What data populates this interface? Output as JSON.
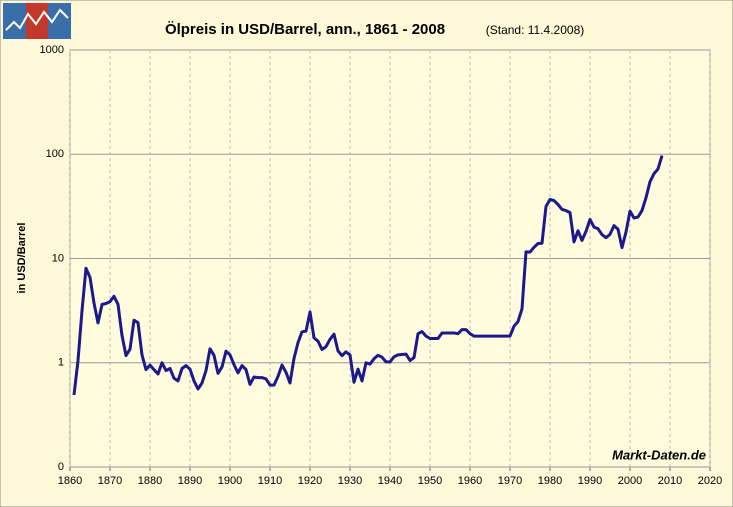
{
  "chart_data": {
    "type": "line",
    "title": "Ölpreis in USD/Barrel, ann., 1861 - 2008",
    "subtitle": "(Stand: 11.4.2008)",
    "y_label": "in USD/Barrel",
    "annotation": "Markt-Daten.de",
    "log_y": true,
    "grid": true,
    "color": "#1a1a8c",
    "xlim": [
      1860,
      2020
    ],
    "xticks": [
      1860,
      1870,
      1880,
      1890,
      1900,
      1910,
      1920,
      1930,
      1940,
      1950,
      1960,
      1970,
      1980,
      1990,
      2000,
      2010,
      2020
    ],
    "ylim": [
      0.1,
      1000
    ],
    "yticks": [
      {
        "value": 0.1,
        "label": "0"
      },
      1,
      10,
      100,
      1000
    ],
    "x": [
      1861,
      1862,
      1863,
      1864,
      1865,
      1866,
      1867,
      1868,
      1869,
      1870,
      1871,
      1872,
      1873,
      1874,
      1875,
      1876,
      1877,
      1878,
      1879,
      1880,
      1881,
      1882,
      1883,
      1884,
      1885,
      1886,
      1887,
      1888,
      1889,
      1890,
      1891,
      1892,
      1893,
      1894,
      1895,
      1896,
      1897,
      1898,
      1899,
      1900,
      1901,
      1902,
      1903,
      1904,
      1905,
      1906,
      1907,
      1908,
      1909,
      1910,
      1911,
      1912,
      1913,
      1914,
      1915,
      1916,
      1917,
      1918,
      1919,
      1920,
      1921,
      1922,
      1923,
      1924,
      1925,
      1926,
      1927,
      1928,
      1929,
      1930,
      1931,
      1932,
      1933,
      1934,
      1935,
      1936,
      1937,
      1938,
      1939,
      1940,
      1941,
      1942,
      1943,
      1944,
      1945,
      1946,
      1947,
      1948,
      1949,
      1950,
      1951,
      1952,
      1953,
      1954,
      1955,
      1956,
      1957,
      1958,
      1959,
      1960,
      1961,
      1962,
      1963,
      1964,
      1965,
      1966,
      1967,
      1968,
      1969,
      1970,
      1971,
      1972,
      1973,
      1974,
      1975,
      1976,
      1977,
      1978,
      1979,
      1980,
      1981,
      1982,
      1983,
      1984,
      1985,
      1986,
      1987,
      1988,
      1989,
      1990,
      1991,
      1992,
      1993,
      1994,
      1995,
      1996,
      1997,
      1998,
      1999,
      2000,
      2001,
      2002,
      2003,
      2004,
      2005,
      2006,
      2007,
      2008
    ],
    "values": [
      0.49,
      1.05,
      3.15,
      8.06,
      6.59,
      3.74,
      2.41,
      3.62,
      3.7,
      3.86,
      4.34,
      3.64,
      1.83,
      1.17,
      1.35,
      2.56,
      2.42,
      1.19,
      0.86,
      0.95,
      0.86,
      0.78,
      1.0,
      0.84,
      0.88,
      0.71,
      0.67,
      0.88,
      0.94,
      0.87,
      0.67,
      0.56,
      0.64,
      0.84,
      1.36,
      1.18,
      0.79,
      0.91,
      1.29,
      1.19,
      0.96,
      0.8,
      0.94,
      0.86,
      0.62,
      0.73,
      0.72,
      0.72,
      0.7,
      0.61,
      0.61,
      0.74,
      0.95,
      0.81,
      0.64,
      1.1,
      1.56,
      1.98,
      2.01,
      3.07,
      1.73,
      1.61,
      1.34,
      1.43,
      1.68,
      1.88,
      1.3,
      1.17,
      1.27,
      1.19,
      0.65,
      0.87,
      0.67,
      1.0,
      0.97,
      1.09,
      1.18,
      1.13,
      1.02,
      1.02,
      1.14,
      1.19,
      1.2,
      1.21,
      1.05,
      1.12,
      1.9,
      1.99,
      1.8,
      1.71,
      1.71,
      1.71,
      1.93,
      1.93,
      1.93,
      1.93,
      1.9,
      2.08,
      2.08,
      1.9,
      1.8,
      1.8,
      1.8,
      1.8,
      1.8,
      1.8,
      1.8,
      1.8,
      1.8,
      1.8,
      2.24,
      2.48,
      3.29,
      11.58,
      11.53,
      12.8,
      13.92,
      14.02,
      31.61,
      36.83,
      35.93,
      32.97,
      29.55,
      28.78,
      27.56,
      14.43,
      18.44,
      14.92,
      18.23,
      23.73,
      20.0,
      19.32,
      16.97,
      15.82,
      17.02,
      20.67,
      19.09,
      12.72,
      17.97,
      28.5,
      24.44,
      25.02,
      28.83,
      38.27,
      54.52,
      65.14,
      72.39,
      97
    ]
  }
}
